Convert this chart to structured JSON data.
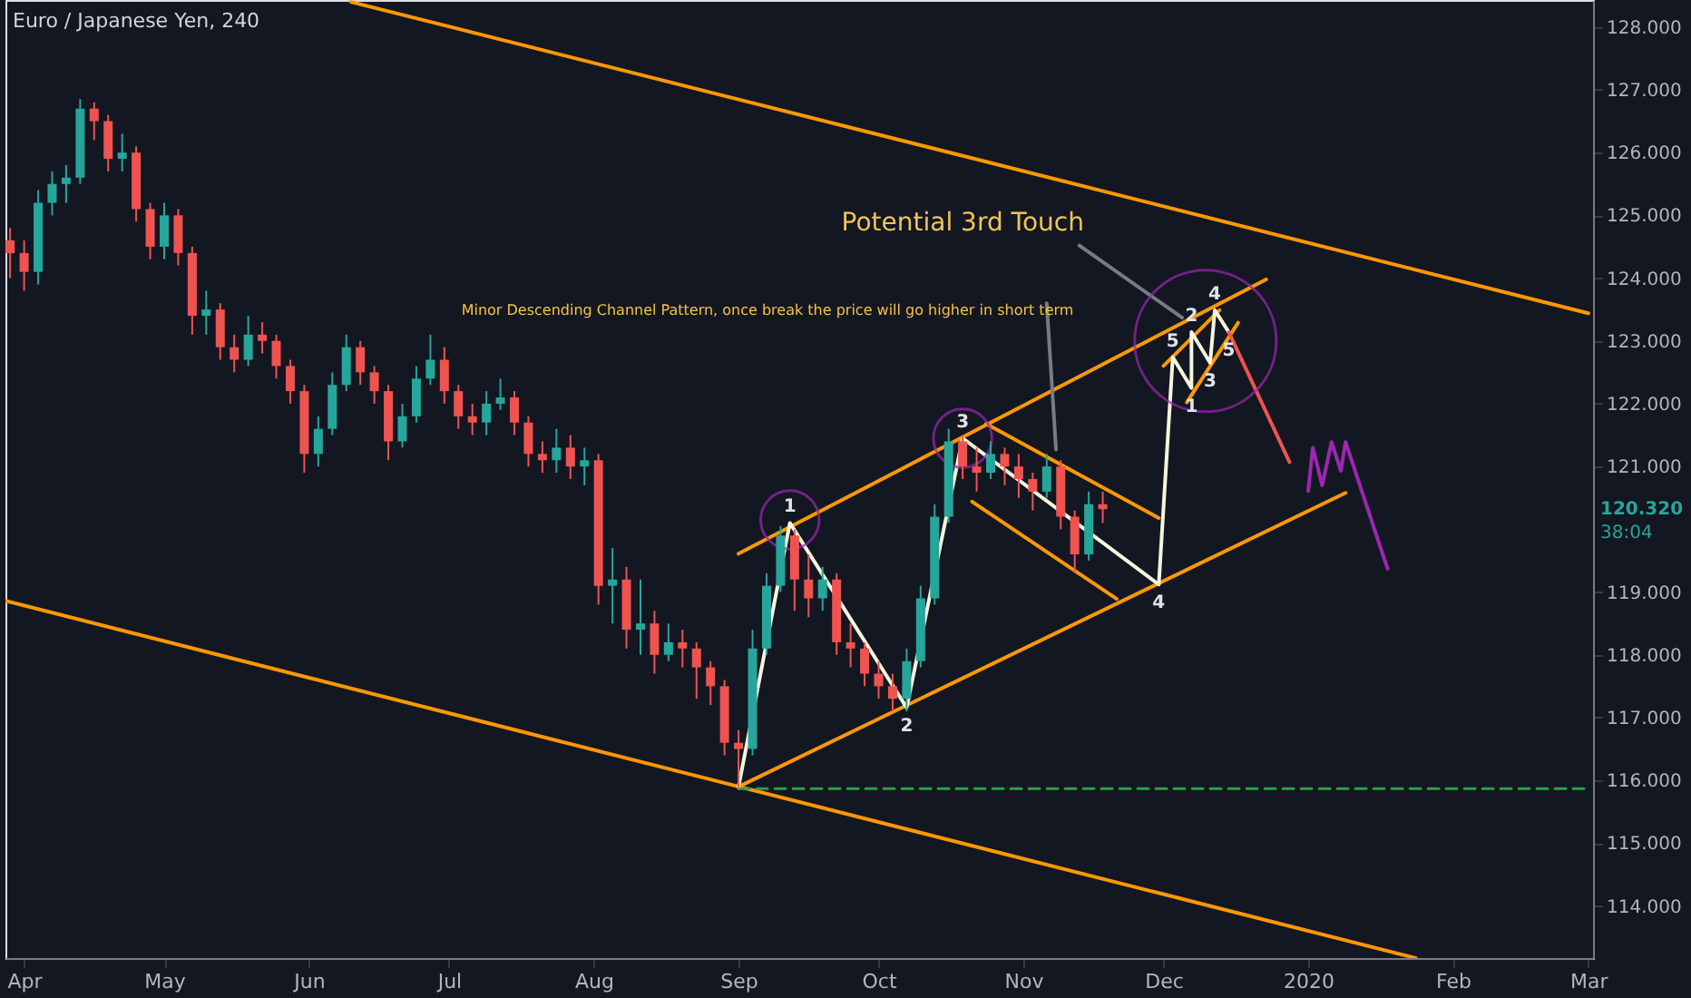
{
  "chart_data": {
    "type": "candlestick",
    "title": "Euro / Japanese Yen, 240",
    "x": [
      "2019-03-29",
      "2019-04-01",
      "2019-04-04",
      "2019-04-07",
      "2019-04-10",
      "2019-04-13",
      "2019-04-16",
      "2019-04-19",
      "2019-04-22",
      "2019-04-25",
      "2019-04-28",
      "2019-05-01",
      "2019-05-04",
      "2019-05-07",
      "2019-05-10",
      "2019-05-13",
      "2019-05-16",
      "2019-05-19",
      "2019-05-22",
      "2019-05-25",
      "2019-05-28",
      "2019-05-31",
      "2019-06-03",
      "2019-06-06",
      "2019-06-09",
      "2019-06-12",
      "2019-06-15",
      "2019-06-18",
      "2019-06-21",
      "2019-06-24",
      "2019-06-27",
      "2019-06-30",
      "2019-07-03",
      "2019-07-06",
      "2019-07-09",
      "2019-07-12",
      "2019-07-15",
      "2019-07-18",
      "2019-07-21",
      "2019-07-24",
      "2019-07-27",
      "2019-07-30",
      "2019-08-02",
      "2019-08-05",
      "2019-08-08",
      "2019-08-11",
      "2019-08-14",
      "2019-08-17",
      "2019-08-20",
      "2019-08-23",
      "2019-08-26",
      "2019-08-29",
      "2019-09-01",
      "2019-09-04",
      "2019-09-07",
      "2019-09-10",
      "2019-09-13",
      "2019-09-16",
      "2019-09-19",
      "2019-09-22",
      "2019-09-25",
      "2019-09-28",
      "2019-10-01",
      "2019-10-04",
      "2019-10-07",
      "2019-10-10",
      "2019-10-13",
      "2019-10-16",
      "2019-10-19",
      "2019-10-22",
      "2019-10-25",
      "2019-10-28",
      "2019-10-31",
      "2019-11-03",
      "2019-11-06",
      "2019-11-09",
      "2019-11-12",
      "2019-11-15",
      "2019-11-18"
    ],
    "ohlc": [
      [
        124.6,
        124.8,
        124.0,
        124.4
      ],
      [
        124.4,
        124.6,
        123.8,
        124.1
      ],
      [
        124.1,
        125.4,
        123.9,
        125.2
      ],
      [
        125.2,
        125.7,
        125.0,
        125.5
      ],
      [
        125.5,
        125.8,
        125.2,
        125.6
      ],
      [
        125.6,
        126.85,
        125.5,
        126.7
      ],
      [
        126.7,
        126.8,
        126.2,
        126.5
      ],
      [
        126.5,
        126.6,
        125.7,
        125.9
      ],
      [
        125.9,
        126.3,
        125.7,
        126.0
      ],
      [
        126.0,
        126.1,
        124.9,
        125.1
      ],
      [
        125.1,
        125.2,
        124.3,
        124.5
      ],
      [
        124.5,
        125.2,
        124.3,
        125.0
      ],
      [
        125.0,
        125.1,
        124.2,
        124.4
      ],
      [
        124.4,
        124.5,
        123.1,
        123.4
      ],
      [
        123.4,
        123.8,
        123.1,
        123.5
      ],
      [
        123.5,
        123.6,
        122.7,
        122.9
      ],
      [
        122.9,
        123.1,
        122.5,
        122.7
      ],
      [
        122.7,
        123.4,
        122.6,
        123.1
      ],
      [
        123.1,
        123.3,
        122.8,
        123.0
      ],
      [
        123.0,
        123.1,
        122.4,
        122.6
      ],
      [
        122.6,
        122.7,
        122.0,
        122.2
      ],
      [
        122.2,
        122.3,
        120.9,
        121.2
      ],
      [
        121.2,
        121.8,
        121.0,
        121.6
      ],
      [
        121.6,
        122.5,
        121.5,
        122.3
      ],
      [
        122.3,
        123.1,
        122.2,
        122.9
      ],
      [
        122.9,
        123.0,
        122.3,
        122.5
      ],
      [
        122.5,
        122.6,
        122.0,
        122.2
      ],
      [
        122.2,
        122.3,
        121.1,
        121.4
      ],
      [
        121.4,
        122.0,
        121.3,
        121.8
      ],
      [
        121.8,
        122.6,
        121.7,
        122.4
      ],
      [
        122.4,
        123.1,
        122.3,
        122.7
      ],
      [
        122.7,
        122.9,
        122.0,
        122.2
      ],
      [
        122.2,
        122.3,
        121.6,
        121.8
      ],
      [
        121.8,
        122.0,
        121.5,
        121.7
      ],
      [
        121.7,
        122.2,
        121.5,
        122.0
      ],
      [
        122.0,
        122.4,
        121.9,
        122.1
      ],
      [
        122.1,
        122.2,
        121.5,
        121.7
      ],
      [
        121.7,
        121.8,
        121.0,
        121.2
      ],
      [
        121.2,
        121.4,
        120.9,
        121.1
      ],
      [
        121.1,
        121.6,
        120.9,
        121.3
      ],
      [
        121.3,
        121.5,
        120.8,
        121.0
      ],
      [
        121.0,
        121.3,
        120.7,
        121.1
      ],
      [
        121.1,
        121.2,
        118.8,
        119.1
      ],
      [
        119.1,
        119.7,
        118.5,
        119.2
      ],
      [
        119.2,
        119.4,
        118.1,
        118.4
      ],
      [
        118.4,
        119.2,
        118.0,
        118.5
      ],
      [
        118.5,
        118.7,
        117.7,
        118.0
      ],
      [
        118.0,
        118.5,
        117.9,
        118.2
      ],
      [
        118.2,
        118.4,
        117.8,
        118.1
      ],
      [
        118.1,
        118.2,
        117.3,
        117.8
      ],
      [
        117.8,
        117.9,
        117.2,
        117.5
      ],
      [
        117.5,
        117.6,
        116.4,
        116.6
      ],
      [
        116.6,
        116.8,
        115.85,
        116.5
      ],
      [
        116.5,
        118.4,
        116.4,
        118.1
      ],
      [
        118.1,
        119.3,
        118.0,
        119.1
      ],
      [
        119.1,
        120.05,
        119.0,
        119.9
      ],
      [
        119.9,
        120.0,
        118.7,
        119.2
      ],
      [
        119.2,
        119.6,
        118.6,
        118.9
      ],
      [
        118.9,
        119.4,
        118.7,
        119.2
      ],
      [
        119.2,
        119.3,
        118.0,
        118.2
      ],
      [
        118.2,
        118.5,
        117.8,
        118.1
      ],
      [
        118.1,
        118.2,
        117.5,
        117.7
      ],
      [
        117.7,
        117.9,
        117.3,
        117.5
      ],
      [
        117.5,
        117.7,
        117.1,
        117.3
      ],
      [
        117.3,
        118.1,
        117.1,
        117.9
      ],
      [
        117.9,
        119.1,
        117.8,
        118.9
      ],
      [
        118.9,
        120.4,
        118.8,
        120.2
      ],
      [
        120.2,
        121.6,
        120.1,
        121.4
      ],
      [
        121.4,
        121.5,
        120.8,
        121.0
      ],
      [
        121.0,
        121.3,
        120.6,
        120.9
      ],
      [
        120.9,
        121.4,
        120.8,
        121.2
      ],
      [
        121.2,
        121.3,
        120.7,
        121.0
      ],
      [
        121.0,
        121.2,
        120.5,
        120.8
      ],
      [
        120.8,
        120.9,
        120.3,
        120.6
      ],
      [
        120.6,
        121.2,
        120.5,
        121.0
      ],
      [
        121.0,
        121.1,
        120.0,
        120.2
      ],
      [
        120.2,
        120.3,
        119.3,
        119.6
      ],
      [
        119.6,
        120.6,
        119.5,
        120.4
      ],
      [
        120.4,
        120.6,
        120.1,
        120.32
      ]
    ],
    "colors": [
      "#ef5350",
      "#ef5350",
      "#26a69a",
      "#26a69a",
      "#26a69a",
      "#26a69a",
      "#ef5350",
      "#ef5350",
      "#26a69a",
      "#ef5350",
      "#ef5350",
      "#26a69a",
      "#ef5350",
      "#ef5350",
      "#26a69a",
      "#ef5350",
      "#ef5350",
      "#26a69a",
      "#ef5350",
      "#ef5350",
      "#ef5350",
      "#ef5350",
      "#26a69a",
      "#26a69a",
      "#26a69a",
      "#ef5350",
      "#ef5350",
      "#ef5350",
      "#26a69a",
      "#26a69a",
      "#26a69a",
      "#ef5350",
      "#ef5350",
      "#ef5350",
      "#26a69a",
      "#26a69a",
      "#ef5350",
      "#ef5350",
      "#ef5350",
      "#26a69a",
      "#ef5350",
      "#26a69a",
      "#ef5350",
      "#26a69a",
      "#ef5350",
      "#26a69a",
      "#ef5350",
      "#26a69a",
      "#ef5350",
      "#ef5350",
      "#ef5350",
      "#ef5350",
      "#ef5350",
      "#26a69a",
      "#26a69a",
      "#26a69a",
      "#ef5350",
      "#ef5350",
      "#26a69a",
      "#ef5350",
      "#ef5350",
      "#ef5350",
      "#ef5350",
      "#ef5350",
      "#26a69a",
      "#26a69a",
      "#26a69a",
      "#26a69a",
      "#ef5350",
      "#ef5350",
      "#26a69a",
      "#ef5350",
      "#ef5350",
      "#ef5350",
      "#26a69a",
      "#ef5350",
      "#ef5350",
      "#26a69a",
      "#ef5350"
    ],
    "series": [
      {
        "type": "line",
        "color": "#ff9800",
        "x": [
          "2019-06-10",
          "2020-03-01"
        ],
        "values": [
          128.4,
          123.44
        ]
      },
      {
        "type": "line",
        "color": "#ff9800",
        "x": [
          "2019-03-28",
          "2020-01-24"
        ],
        "values": [
          118.86,
          113.17
        ]
      },
      {
        "type": "line",
        "color": "#ff9800",
        "x": [
          "2019-09-01",
          "2020-01-09"
        ],
        "values": [
          115.9,
          120.58
        ]
      },
      {
        "type": "line",
        "color": "#ff9800",
        "x": [
          "2019-09-01",
          "2019-12-23"
        ],
        "values": [
          119.61,
          123.98
        ]
      },
      {
        "type": "line",
        "color": "#ff9800",
        "x": [
          "2019-10-24",
          "2019-11-30"
        ],
        "values": [
          121.68,
          120.18
        ]
      },
      {
        "type": "line",
        "color": "#ff9800",
        "x": [
          "2019-10-21",
          "2019-11-21"
        ],
        "values": [
          120.44,
          118.89
        ]
      },
      {
        "type": "line",
        "color": "#ff9800",
        "x": [
          "2019-12-01",
          "2019-12-13"
        ],
        "values": [
          122.6,
          123.49
        ]
      },
      {
        "type": "line",
        "color": "#ff9800",
        "x": [
          "2019-12-06",
          "2019-12-17"
        ],
        "values": [
          122.02,
          123.29
        ]
      },
      {
        "type": "line",
        "color": "#2e9e4a",
        "line_style": "dashed",
        "x": [
          "2019-09-01",
          "2020-03-01"
        ],
        "values": [
          115.87,
          115.87
        ]
      },
      {
        "type": "line",
        "color": "#787b86",
        "x": [
          "2019-11-06",
          "2019-11-08"
        ],
        "values": [
          123.6,
          121.27
        ]
      },
      {
        "type": "line",
        "color": "#787b86",
        "x": [
          "2019-11-13",
          "2019-12-05"
        ],
        "values": [
          124.52,
          123.37
        ]
      },
      {
        "type": "line",
        "color": "#f5f5dc",
        "x": [
          "2019-09-01",
          "2019-09-12",
          "2019-10-07",
          "2019-10-19",
          "2019-11-30",
          "2019-12-03",
          "2019-12-07",
          "2019-12-07",
          "2019-12-11",
          "2019-12-12",
          "2019-12-15"
        ],
        "values": [
          115.9,
          120.1,
          117.16,
          121.45,
          119.12,
          122.74,
          122.25,
          123.14,
          122.65,
          123.49,
          123.14
        ]
      },
      {
        "type": "line",
        "color": "#ef5350",
        "x": [
          "2019-12-15",
          "2019-12-28"
        ],
        "values": [
          123.14,
          121.07
        ]
      },
      {
        "type": "line",
        "color": "#9c27b0",
        "x": [
          "2020-01-01",
          "2020-01-02",
          "2020-01-04",
          "2020-01-06",
          "2020-01-08",
          "2020-01-09",
          "2020-01-18"
        ],
        "values": [
          120.61,
          121.3,
          120.7,
          121.39,
          120.93,
          121.39,
          119.37
        ]
      },
      {
        "type": "scatter",
        "color": "#9c27b0",
        "marker": "circle",
        "x": [
          "2019-09-12",
          "2019-10-19",
          "2019-12-10"
        ],
        "values": [
          120.15,
          121.45,
          123.0
        ],
        "sizes": [
          0.17,
          0.17,
          1
        ]
      }
    ],
    "annotations": [
      "Minor Descending Channel Pattern, once break the price will go higher in short term",
      "Potential 3rd Touch",
      {
        "text": "1",
        "x": "2019-09-12",
        "y": 120.1
      },
      {
        "text": "2",
        "x": "2019-10-07",
        "y": 117.16
      },
      {
        "text": "3",
        "x": "2019-10-19",
        "y": 121.45
      },
      {
        "text": "4",
        "x": "2019-11-30",
        "y": 119.12
      },
      {
        "text": "5",
        "x": "2019-12-03",
        "y": 122.74
      },
      {
        "text": "1",
        "x": "2019-12-07",
        "y": 122.25
      },
      {
        "text": "2",
        "x": "2019-12-07",
        "y": 123.14
      },
      {
        "text": "3",
        "x": "2019-12-11",
        "y": 122.65
      },
      {
        "text": "4",
        "x": "2019-12-12",
        "y": 123.49
      },
      {
        "text": "5",
        "x": "2019-12-15",
        "y": 123.14
      },
      "120.320",
      "38:04"
    ],
    "xlim": [
      "2019-03-28",
      "2020-03-02"
    ],
    "xticks": [
      {
        "value": "2019-04-01",
        "label": "Apr"
      },
      {
        "value": "2019-05-01",
        "label": "May"
      },
      {
        "value": "2019-06-01",
        "label": "Jun"
      },
      {
        "value": "2019-07-01",
        "label": "Jul"
      },
      {
        "value": "2019-08-01",
        "label": "Aug"
      },
      {
        "value": "2019-09-01",
        "label": "Sep"
      },
      {
        "value": "2019-10-01",
        "label": "Oct"
      },
      {
        "value": "2019-11-01",
        "label": "Nov"
      },
      {
        "value": "2019-12-01",
        "label": "Dec"
      },
      {
        "value": "2020-01-01",
        "label": "2020"
      },
      {
        "value": "2020-02-01",
        "label": "Feb"
      },
      {
        "value": "2020-03-01",
        "label": "Mar"
      }
    ],
    "ylim": [
      113.17,
      128.43
    ],
    "yticks": [
      {
        "value": 114,
        "label": "114.000"
      },
      {
        "value": 115,
        "label": "115.000"
      },
      {
        "value": 116,
        "label": "116.000"
      },
      {
        "value": 117,
        "label": "117.000"
      },
      {
        "value": 118,
        "label": "118.000"
      },
      {
        "value": 119,
        "label": "119.000"
      },
      {
        "value": 121,
        "label": "121.000"
      },
      {
        "value": 122,
        "label": "122.000"
      },
      {
        "value": 123,
        "label": "123.000"
      },
      {
        "value": 124,
        "label": "124.000"
      },
      {
        "value": 125,
        "label": "125.000"
      },
      {
        "value": 126,
        "label": "126.000"
      },
      {
        "value": 127,
        "label": "127.000"
      },
      {
        "value": 128,
        "label": "128.000"
      }
    ]
  }
}
